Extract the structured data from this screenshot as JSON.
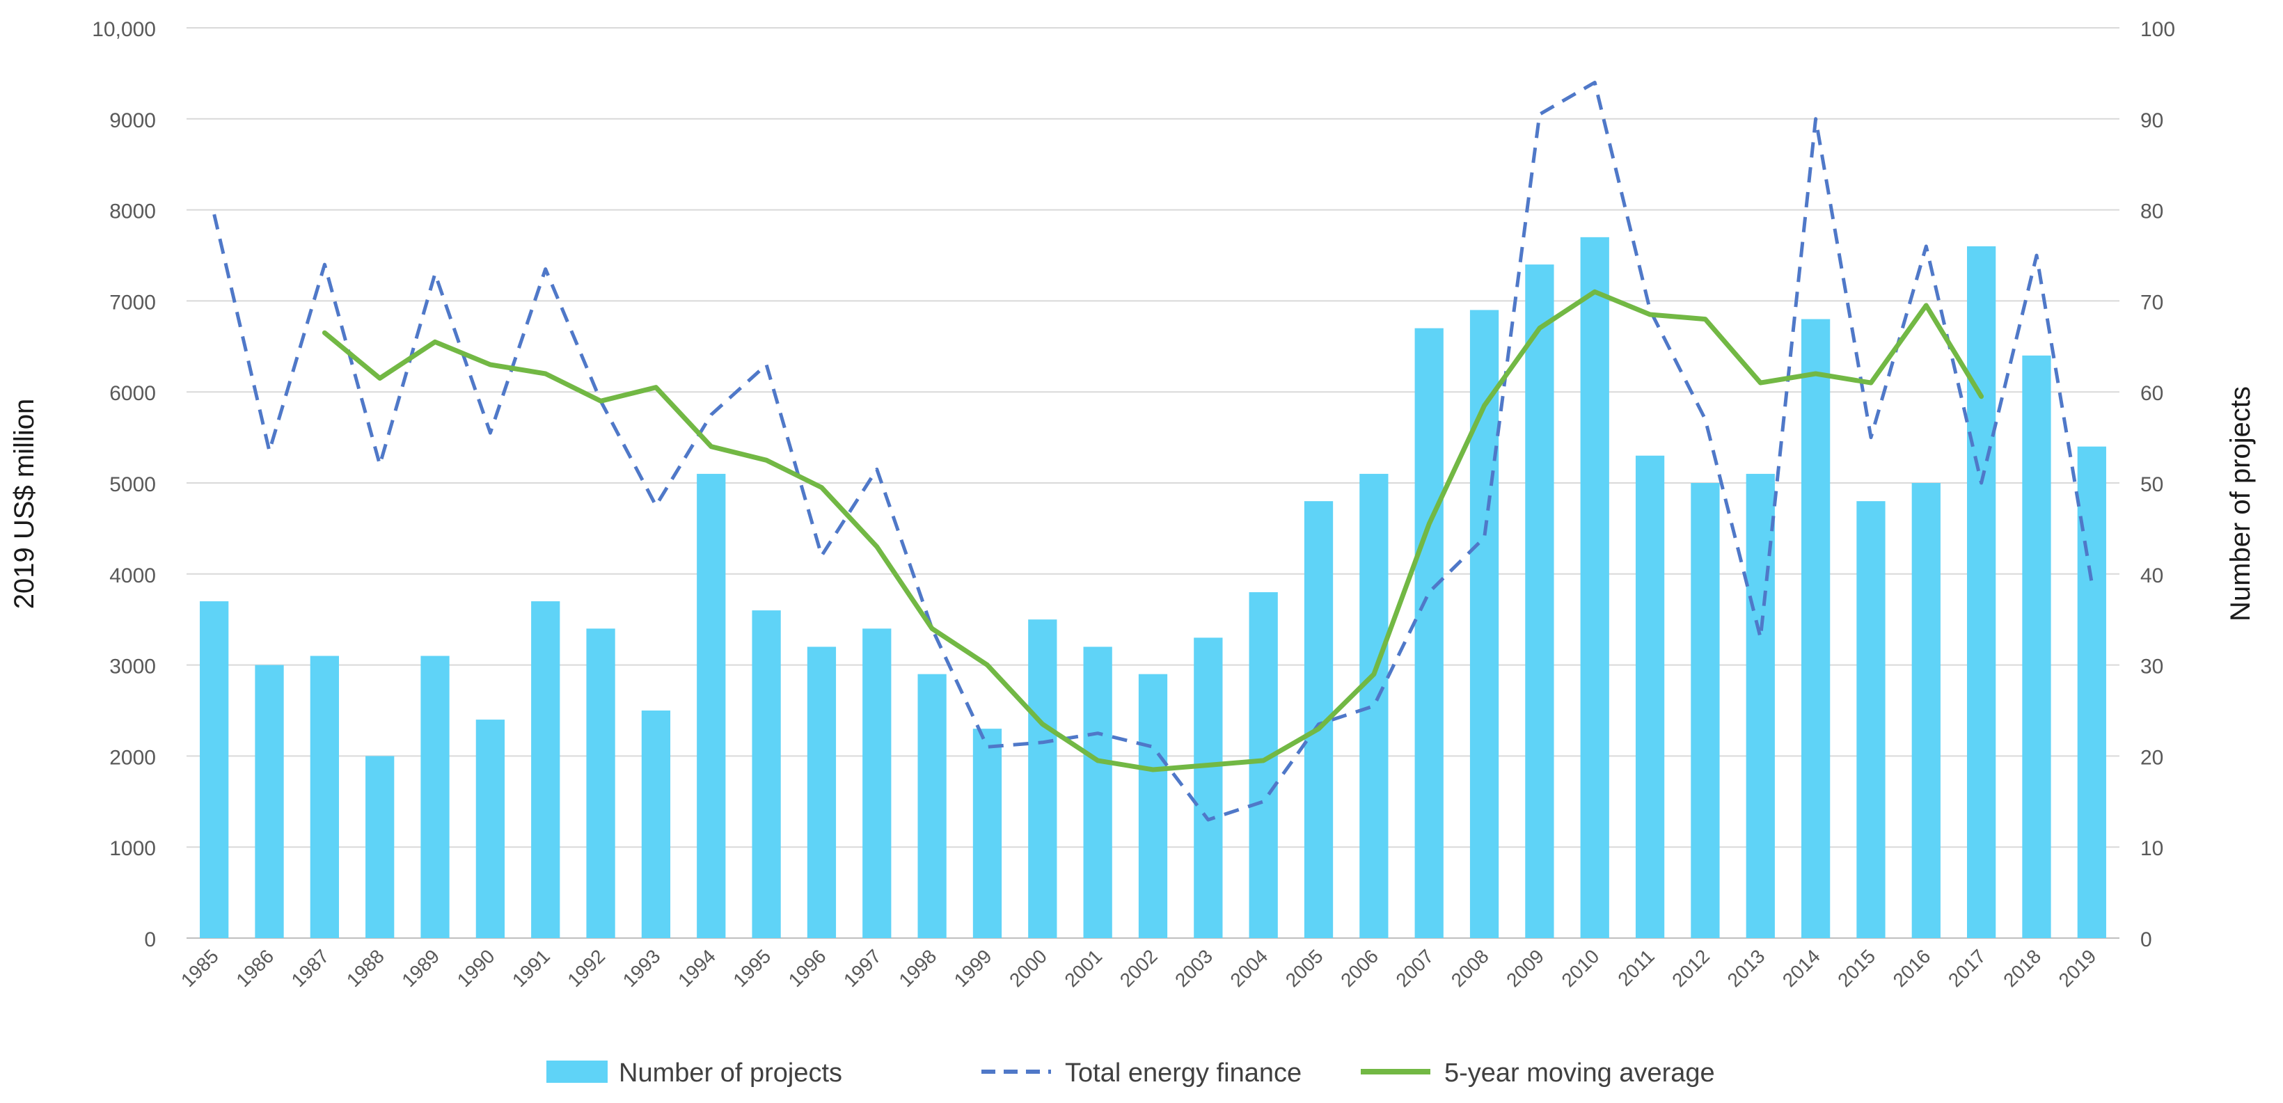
{
  "chart_data": {
    "type": "bar",
    "title": "",
    "xlabel": "",
    "ylabel": "2019 US$ million",
    "y2label": "Number of projects",
    "ylim": [
      0,
      10000
    ],
    "y2lim": [
      0,
      100
    ],
    "yticks": [
      "0",
      "1000",
      "2000",
      "3000",
      "4000",
      "5000",
      "6000",
      "7000",
      "8000",
      "9000",
      "10,000"
    ],
    "y2ticks": [
      "0",
      "10",
      "20",
      "30",
      "40",
      "50",
      "60",
      "70",
      "80",
      "90",
      "100"
    ],
    "grid": true,
    "legend_position": "bottom",
    "categories": [
      "1985",
      "1986",
      "1987",
      "1988",
      "1989",
      "1990",
      "1991",
      "1992",
      "1993",
      "1994",
      "1995",
      "1996",
      "1997",
      "1998",
      "1999",
      "2000",
      "2001",
      "2002",
      "2003",
      "2004",
      "2005",
      "2006",
      "2007",
      "2008",
      "2009",
      "2010",
      "2011",
      "2012",
      "2013",
      "2014",
      "2015",
      "2016",
      "2017",
      "2018",
      "2019"
    ],
    "series": [
      {
        "name": "Number of projects",
        "kind": "bar",
        "axis": "right",
        "color": "#5fd3f7",
        "values": [
          37,
          30,
          31,
          20,
          31,
          24,
          37,
          34,
          25,
          51,
          36,
          32,
          34,
          29,
          23,
          35,
          32,
          29,
          33,
          38,
          48,
          51,
          67,
          69,
          74,
          77,
          53,
          50,
          51,
          68,
          48,
          50,
          76,
          64,
          54
        ]
      },
      {
        "name": "Total energy finance",
        "kind": "line-dashed",
        "axis": "left",
        "color": "#4f78c8",
        "values": [
          7950,
          5350,
          7400,
          5200,
          7300,
          5550,
          7350,
          5900,
          4750,
          5750,
          6300,
          4200,
          5150,
          3400,
          2100,
          2150,
          2250,
          2100,
          1300,
          1500,
          2350,
          2550,
          3800,
          4400,
          9050,
          9400,
          6900,
          5700,
          3300,
          9000,
          5500,
          7600,
          5000,
          7500,
          3900
        ]
      },
      {
        "name": "5-year moving average",
        "kind": "line",
        "axis": "left",
        "color": "#72b844",
        "values": [
          null,
          null,
          6650,
          6150,
          6550,
          6300,
          6200,
          5900,
          6050,
          5400,
          5250,
          4950,
          4300,
          3400,
          3000,
          2350,
          1950,
          1850,
          1900,
          1950,
          2300,
          2900,
          4550,
          5850,
          6700,
          7100,
          6850,
          6800,
          6100,
          6200,
          6100,
          6950,
          5950,
          null,
          null
        ]
      }
    ]
  }
}
